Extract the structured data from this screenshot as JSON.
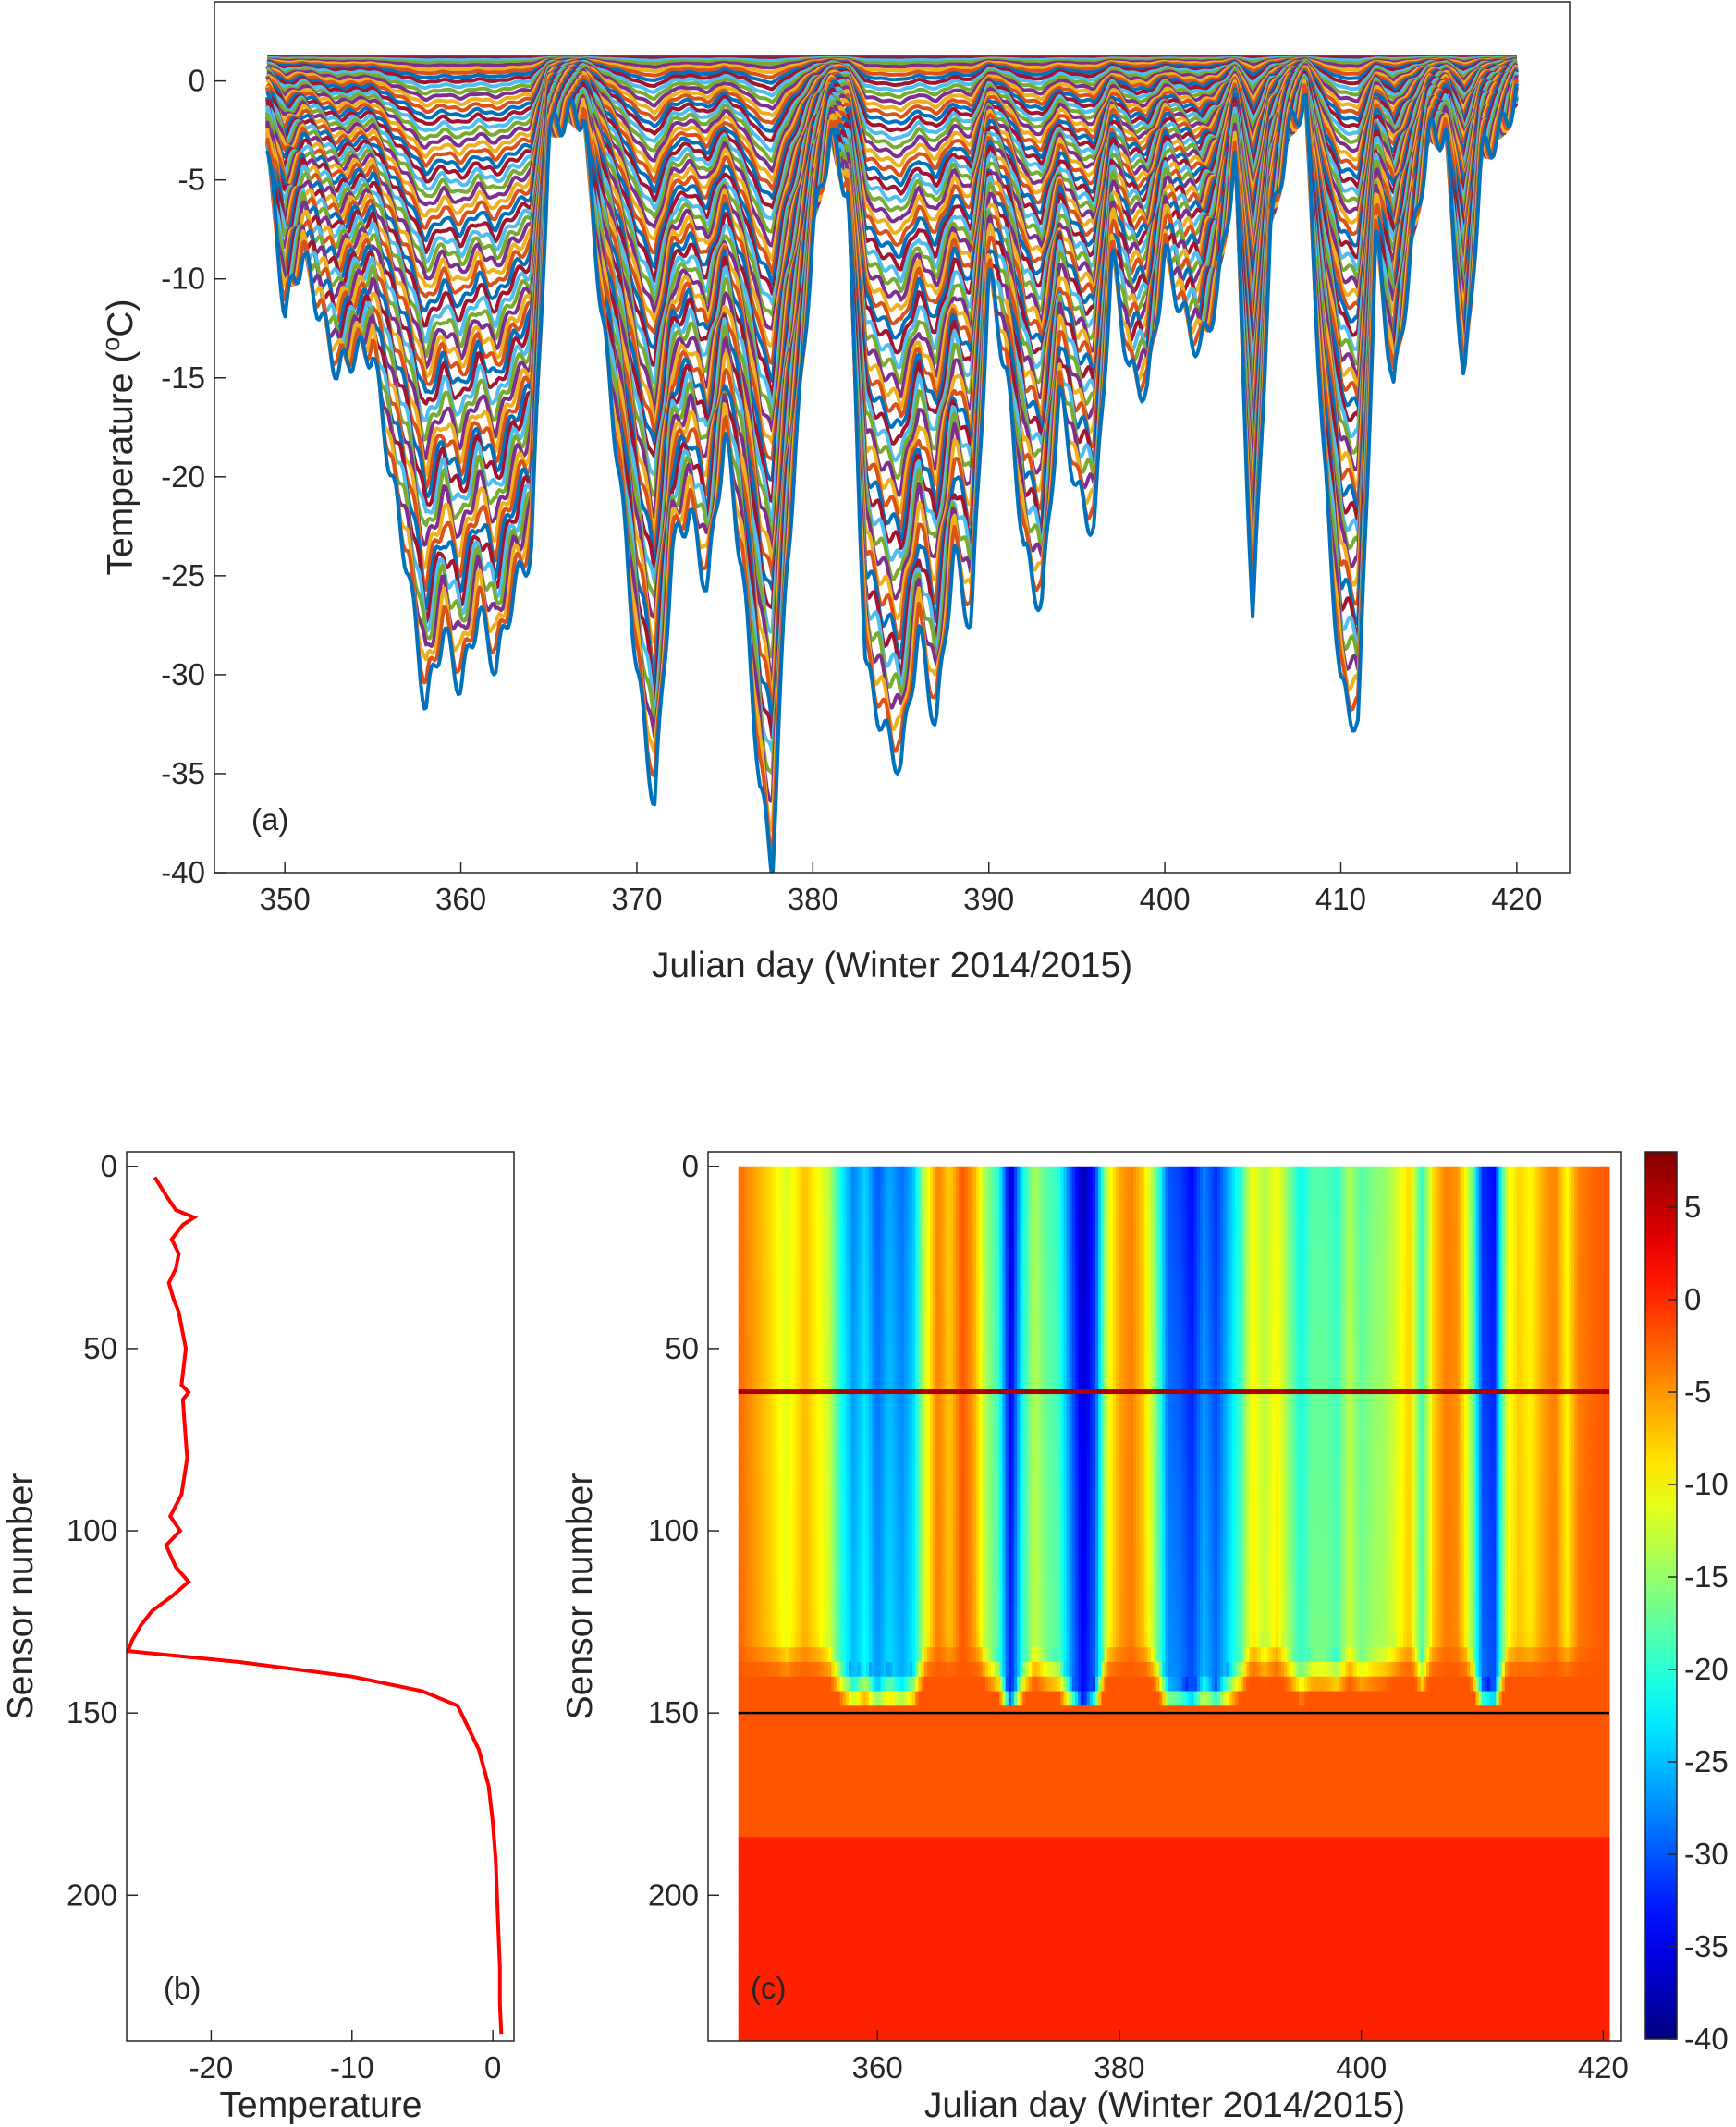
{
  "chart_data": [
    {
      "panel": "a",
      "type": "line",
      "panel_label": "(a)",
      "xlabel": "Julian day (Winter 2014/2015)",
      "ylabel_main": "Temperature (",
      "ylabel_sup": "o",
      "ylabel_end": "C)",
      "xlim": [
        346,
        423
      ],
      "ylim": [
        -40,
        4
      ],
      "xticks": [
        350,
        360,
        370,
        380,
        390,
        400,
        410,
        420
      ],
      "yticks": [
        0,
        -5,
        -10,
        -15,
        -20,
        -25,
        -30,
        -35,
        -40
      ],
      "grid": false,
      "series_colors": [
        "#0072BD",
        "#D95319",
        "#EDB120",
        "#7E2F8E",
        "#77AC30",
        "#4DBEEE",
        "#A2142F"
      ],
      "description_of_series": "about 230 sensor temperature traces (one per sensor) sharing the same cold events; deeper sensors are damped",
      "surface_trace": {
        "x": [
          349,
          350,
          351,
          352,
          353,
          354,
          355,
          356,
          357,
          358,
          359,
          360,
          361,
          362,
          363,
          364,
          365,
          366,
          367,
          368,
          369,
          370,
          371,
          372,
          373,
          374,
          375,
          376,
          377,
          377.7,
          378.5,
          380,
          381,
          382,
          383,
          384,
          385,
          386,
          387,
          388,
          389,
          390,
          391,
          392,
          393,
          394,
          395,
          396,
          397,
          398,
          399,
          400,
          401,
          402,
          403,
          404,
          405,
          406,
          407,
          408,
          409,
          410,
          411,
          412,
          413,
          414,
          415,
          416,
          417,
          418,
          419,
          420
        ],
        "y": [
          -3.5,
          -12,
          -9,
          -12,
          -15,
          -14,
          -14,
          -20,
          -25,
          -32,
          -28,
          -31,
          -27,
          -30,
          -26,
          -24,
          -3,
          -2,
          -2,
          -12,
          -20,
          -30,
          -37,
          -24,
          -22,
          -26,
          -18,
          -25,
          -36,
          -40,
          -25,
          -8,
          -3,
          -6,
          -30,
          -33,
          -35,
          -28,
          -33,
          -24,
          -28,
          -10,
          -15,
          -24,
          -27,
          -16,
          -21,
          -23,
          -9,
          -15,
          -16,
          -9,
          -12,
          -14,
          -11,
          -4,
          -28,
          -8,
          -3,
          -1,
          -19,
          -31,
          -33,
          -8,
          -16,
          -9,
          -3,
          -3,
          -16,
          -4,
          -3,
          -1
        ]
      }
    },
    {
      "panel": "b",
      "type": "line",
      "panel_label": "(b)",
      "xlabel": "Temperature",
      "ylabel": "Sensor number",
      "xlim": [
        -26,
        1.5
      ],
      "ylim": [
        240,
        -4
      ],
      "xticks": [
        -20,
        -10,
        0
      ],
      "yticks": [
        0,
        50,
        100,
        150,
        200
      ],
      "line_color": "#FF0000",
      "profile": {
        "sensor": [
          3,
          8,
          12,
          14,
          16,
          20,
          24,
          28,
          32,
          36,
          40,
          50,
          60,
          62,
          64,
          70,
          80,
          90,
          96,
          100,
          104,
          110,
          114,
          118,
          122,
          126,
          130,
          133,
          136,
          140,
          144,
          148,
          152,
          160,
          170,
          180,
          190,
          200,
          210,
          220,
          230,
          238
        ],
        "temperature": [
          -24,
          -23.2,
          -22.5,
          -21.2,
          -22,
          -22.8,
          -22.3,
          -22.5,
          -23,
          -22.7,
          -22.3,
          -21.8,
          -22.1,
          -21.6,
          -22,
          -21.9,
          -21.7,
          -22.1,
          -22.9,
          -22.2,
          -23.2,
          -22.5,
          -21.6,
          -22.8,
          -24.2,
          -25,
          -25.6,
          -25.9,
          -18,
          -10,
          -5,
          -2.5,
          -2,
          -1,
          -0.3,
          0,
          0.2,
          0.3,
          0.4,
          0.5,
          0.5,
          0.6
        ]
      }
    },
    {
      "panel": "c",
      "type": "heatmap",
      "panel_label": "(c)",
      "xlabel": "Julian day (Winter 2014/2015)",
      "ylabel": "Sensor number",
      "xlim": [
        346,
        421.5
      ],
      "ylim": [
        240,
        -4
      ],
      "xticks": [
        360,
        380,
        400,
        420
      ],
      "yticks": [
        0,
        50,
        100,
        150,
        200
      ],
      "colorbar_ticks": [
        5,
        0,
        -5,
        -10,
        -15,
        -20,
        -25,
        -30,
        -35,
        -40
      ],
      "colorbar_range": [
        -40,
        8
      ],
      "colormap": "jet",
      "reference_line_sensor": 150,
      "hot_sensor_row": 62,
      "surface_temperature_by_day": {
        "x": [
          348.5,
          351,
          352.5,
          354,
          356,
          357,
          358,
          359,
          360,
          361,
          362,
          363,
          364,
          365,
          366,
          367,
          368,
          369,
          370,
          371,
          372,
          373,
          374,
          375,
          376,
          377,
          378,
          379,
          380,
          381,
          382,
          383,
          384,
          385,
          386,
          387,
          388,
          389,
          390,
          391,
          392,
          393,
          394,
          395,
          396,
          397,
          398,
          399,
          400,
          401,
          402,
          403,
          404,
          405,
          406,
          407,
          408,
          409,
          410,
          411,
          412,
          413,
          414,
          415,
          416,
          417,
          418,
          419,
          420.5
        ],
        "y": [
          -3,
          -8,
          -12,
          -7,
          -13,
          -22,
          -28,
          -24,
          -30,
          -26,
          -29,
          -25,
          -12,
          -4,
          -8,
          -2,
          -6,
          -15,
          -20,
          -37,
          -22,
          -14,
          -18,
          -20,
          -30,
          -38,
          -32,
          -12,
          -6,
          -4,
          -8,
          -16,
          -30,
          -31,
          -34,
          -28,
          -32,
          -26,
          -20,
          -10,
          -14,
          -10,
          -16,
          -22,
          -18,
          -18,
          -20,
          -14,
          -18,
          -16,
          -15,
          -12,
          -8,
          -20,
          -8,
          -4,
          -5,
          -14,
          -32,
          -34,
          -12,
          -8,
          -10,
          -6,
          -4,
          -10,
          -4,
          -3,
          -2
        ]
      }
    }
  ]
}
